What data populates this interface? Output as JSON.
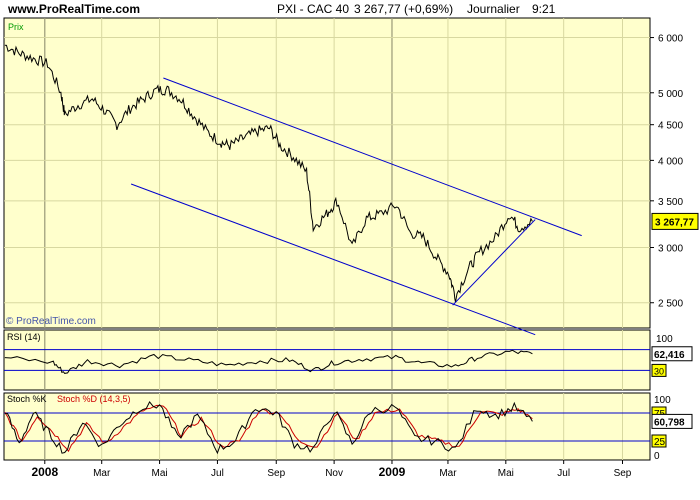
{
  "header": {
    "site": "www.ProRealTime.com",
    "instrument": "PXI - CAC 40",
    "price_change": "3 267,77 (+0,69%)",
    "period": "Journalier",
    "time": "9:21"
  },
  "colors": {
    "panel_bg": "#ffffcc",
    "price_line": "#000000",
    "channel": "#0000cc",
    "grid": "#d8d8a0",
    "stoch_d": "#cc0000"
  },
  "chart_data": [
    {
      "type": "line",
      "panel": "price",
      "label": "Prix",
      "watermark": "© ProRealTime.com",
      "ylim": [
        2300,
        6400
      ],
      "log_scale": true,
      "yticks": [
        "6 000",
        "5 000",
        "4 500",
        "4 000",
        "3 500",
        "3 000",
        "2 500"
      ],
      "last_value": "3 267,77",
      "x_range": [
        "2007-11-19",
        "2009-09-30"
      ],
      "series": [
        {
          "x": [
            "2007-11-20",
            "2007-12-05",
            "2007-12-20",
            "2008-01-04",
            "2008-01-18",
            "2008-01-22",
            "2008-02-05",
            "2008-02-20",
            "2008-03-05",
            "2008-03-17",
            "2008-03-31",
            "2008-04-14",
            "2008-04-28",
            "2008-05-09",
            "2008-05-23",
            "2008-06-05",
            "2008-06-20",
            "2008-07-04",
            "2008-07-14",
            "2008-07-28",
            "2008-08-11",
            "2008-08-25",
            "2008-09-05",
            "2008-09-19",
            "2008-10-03",
            "2008-10-10",
            "2008-10-24",
            "2008-11-04",
            "2008-11-20",
            "2008-12-05",
            "2008-12-19",
            "2009-01-06",
            "2009-01-20",
            "2009-02-03",
            "2009-02-17",
            "2009-03-02",
            "2009-03-09",
            "2009-03-23",
            "2009-04-03",
            "2009-04-20",
            "2009-05-05",
            "2009-05-15",
            "2009-05-29"
          ],
          "y": [
            5850,
            5700,
            5600,
            5500,
            5000,
            4650,
            4800,
            4900,
            4700,
            4500,
            4750,
            4900,
            5050,
            5050,
            4900,
            4650,
            4400,
            4250,
            4200,
            4300,
            4400,
            4450,
            4200,
            4050,
            3850,
            3200,
            3350,
            3500,
            3000,
            3300,
            3350,
            3450,
            3150,
            3100,
            2900,
            2750,
            2550,
            2800,
            2950,
            3100,
            3350,
            3200,
            3270
          ]
        }
      ],
      "channel": {
        "upper": {
          "x": [
            "2008-05-05",
            "2009-07-20"
          ],
          "y": [
            5250,
            3120
          ]
        },
        "lower": {
          "x": [
            "2008-04-01",
            "2009-06-01"
          ],
          "y": [
            3700,
            2250
          ]
        },
        "support": {
          "x": [
            "2009-03-06",
            "2009-06-01"
          ],
          "y": [
            2480,
            3290
          ]
        }
      }
    },
    {
      "type": "line",
      "panel": "rsi",
      "label": "RSI (14)",
      "ylim": [
        0,
        100
      ],
      "levels": [
        70,
        30
      ],
      "yticks": [
        "100",
        "30"
      ],
      "last_value": "62,416",
      "series": [
        {
          "x": [
            "2007-11-20",
            "2008-01-10",
            "2008-01-22",
            "2008-02-15",
            "2008-03-20",
            "2008-04-25",
            "2008-06-01",
            "2008-07-10",
            "2008-08-15",
            "2008-09-15",
            "2008-10-10",
            "2008-11-01",
            "2008-12-01",
            "2009-01-05",
            "2009-02-01",
            "2009-03-09",
            "2009-04-01",
            "2009-05-05",
            "2009-05-29"
          ],
          "y": [
            55,
            45,
            25,
            48,
            40,
            58,
            50,
            40,
            48,
            50,
            30,
            45,
            52,
            55,
            44,
            38,
            55,
            66,
            62
          ]
        }
      ]
    },
    {
      "type": "line",
      "panel": "stochastic",
      "label_k": "Stoch %K",
      "label_d": "Stoch %D (14,3,5)",
      "ylim": [
        0,
        100
      ],
      "levels": [
        75,
        25
      ],
      "yticks": [
        "100",
        "75",
        "25",
        "0"
      ],
      "last_value": "60,798",
      "series": [
        {
          "name": "Stoch %K",
          "x": [
            "2007-11-20",
            "2007-12-05",
            "2007-12-20",
            "2008-01-05",
            "2008-01-22",
            "2008-02-10",
            "2008-03-01",
            "2008-03-20",
            "2008-04-10",
            "2008-05-01",
            "2008-05-20",
            "2008-06-10",
            "2008-07-01",
            "2008-07-20",
            "2008-08-10",
            "2008-09-01",
            "2008-09-20",
            "2008-10-10",
            "2008-11-01",
            "2008-11-20",
            "2008-12-10",
            "2009-01-05",
            "2009-01-25",
            "2009-02-15",
            "2009-03-09",
            "2009-04-01",
            "2009-04-20",
            "2009-05-10",
            "2009-05-29"
          ],
          "y": [
            80,
            20,
            75,
            40,
            5,
            60,
            15,
            55,
            85,
            90,
            30,
            70,
            10,
            25,
            85,
            75,
            20,
            10,
            80,
            20,
            80,
            85,
            30,
            25,
            10,
            85,
            70,
            85,
            60
          ]
        },
        {
          "name": "Stoch %D (14,3,5)",
          "x": [
            "2007-11-20",
            "2007-12-08",
            "2007-12-24",
            "2008-01-09",
            "2008-01-26",
            "2008-02-14",
            "2008-03-05",
            "2008-03-24",
            "2008-04-14",
            "2008-05-05",
            "2008-05-24",
            "2008-06-14",
            "2008-07-05",
            "2008-07-24",
            "2008-08-14",
            "2008-09-05",
            "2008-09-24",
            "2008-10-14",
            "2008-11-05",
            "2008-11-24",
            "2008-12-14",
            "2009-01-09",
            "2009-01-29",
            "2009-02-19",
            "2009-03-13",
            "2009-04-05",
            "2009-04-24",
            "2009-05-14",
            "2009-05-29"
          ],
          "y": [
            75,
            25,
            70,
            42,
            10,
            55,
            20,
            50,
            80,
            88,
            35,
            65,
            15,
            25,
            80,
            75,
            25,
            15,
            75,
            25,
            75,
            82,
            35,
            25,
            15,
            80,
            72,
            82,
            65
          ]
        }
      ]
    }
  ],
  "time_axis": [
    {
      "label": "2008",
      "date": "2008-01-01",
      "bold": true
    },
    {
      "label": "Mar",
      "date": "2008-03-01"
    },
    {
      "label": "Mai",
      "date": "2008-05-01"
    },
    {
      "label": "Jul",
      "date": "2008-07-01"
    },
    {
      "label": "Sep",
      "date": "2008-09-01"
    },
    {
      "label": "Nov",
      "date": "2008-11-01"
    },
    {
      "label": "2009",
      "date": "2009-01-01",
      "bold": true
    },
    {
      "label": "Mar",
      "date": "2009-03-01"
    },
    {
      "label": "Mai",
      "date": "2009-05-01"
    },
    {
      "label": "Jul",
      "date": "2009-07-01"
    },
    {
      "label": "Sep",
      "date": "2009-09-01"
    }
  ]
}
